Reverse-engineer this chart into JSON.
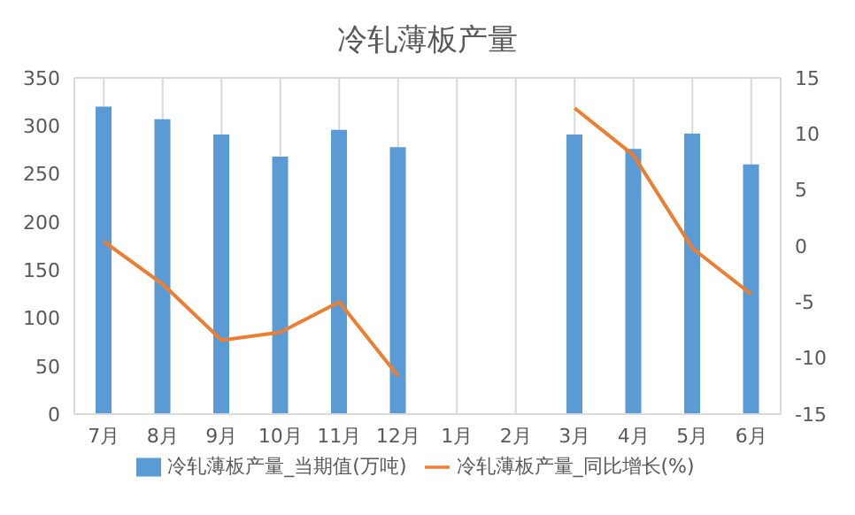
{
  "chart_data": {
    "type": "bar",
    "title": "冷轧薄板产量",
    "categories": [
      "7月",
      "8月",
      "9月",
      "10月",
      "11月",
      "12月",
      "1月",
      "2月",
      "3月",
      "4月",
      "5月",
      "6月"
    ],
    "series": [
      {
        "name": "冷轧薄板产量_当期值(万吨)",
        "color": "#5b9bd5",
        "values": [
          320,
          307,
          291,
          268,
          296,
          278,
          null,
          null,
          291,
          276,
          292,
          260
        ]
      },
      {
        "name": "冷轧薄板产量_同比增长(%)",
        "type": "line",
        "axis": "y2",
        "color": "#ed7d31",
        "values": [
          0.4,
          -3.4,
          -8.4,
          -7.7,
          -5,
          -11.6,
          null,
          null,
          12.3,
          8.1,
          -0.2,
          -4.3
        ]
      }
    ],
    "ylim": [
      0,
      350
    ],
    "yticks": [
      0,
      50,
      100,
      150,
      200,
      250,
      300,
      350
    ],
    "y2lim": [
      -15,
      15
    ],
    "y2ticks": [
      -15,
      -10,
      -5,
      0,
      5,
      10,
      15
    ],
    "grid": true,
    "legend": "bottom"
  }
}
